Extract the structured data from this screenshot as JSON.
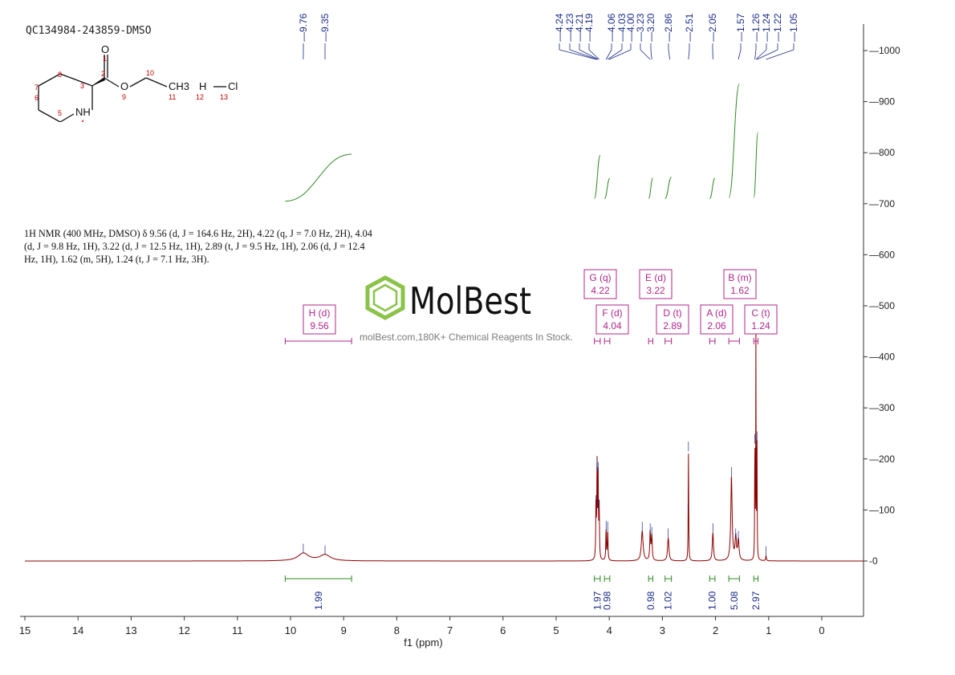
{
  "sample_id": "QC134984-243859-DMSO",
  "nmr_description": "1H NMR (400 MHz, DMSO) δ 9.56 (d, J = 164.6 Hz, 2H), 4.22 (q, J = 7.0 Hz, 2H), 4.04 (d, J = 9.8 Hz, 1H), 3.22 (d, J = 12.5 Hz, 1H), 2.89 (t, J = 9.5 Hz, 1H), 2.06 (d, J = 12.4 Hz, 1H), 1.62 (m, 5H), 1.24 (t, J = 7.1 Hz, 3H).",
  "watermark": {
    "brand": "MolBest",
    "tagline": "molBest.com,180K+ Chemical Reagents In Stock."
  },
  "structure": {
    "atoms": [
      "O",
      "O",
      "NH",
      "CH3",
      "H",
      "Cl"
    ],
    "numbers": [
      "1",
      "2",
      "3",
      "4",
      "5",
      "6",
      "7",
      "8",
      "9",
      "10",
      "11",
      "12",
      "13"
    ]
  },
  "colors": {
    "spectrum": "#8b0000",
    "integral": "#2e8b22",
    "peak_label": "#1a2a8a",
    "multiplet": "#b0268a",
    "axis": "#333333"
  },
  "chart_data": {
    "type": "line",
    "xlabel": "f1 (ppm)",
    "ylabel": "",
    "xlim": [
      15,
      -0.8
    ],
    "ylim": [
      -100,
      1050
    ],
    "x_ticks": [
      15,
      14,
      13,
      12,
      11,
      10,
      9,
      8,
      7,
      6,
      5,
      4,
      3,
      2,
      1,
      0
    ],
    "y_ticks": [
      0,
      100,
      200,
      300,
      400,
      500,
      600,
      700,
      800,
      900,
      1000
    ],
    "peak_labels": [
      "9.76",
      "9.35",
      "4.24",
      "4.23",
      "4.21",
      "4.19",
      "4.06",
      "4.03",
      "4.00",
      "3.23",
      "3.20",
      "2.86",
      "2.51",
      "2.05",
      "1.57",
      "1.26",
      "1.24",
      "1.22",
      "1.05"
    ],
    "peaks": [
      {
        "ppm": 9.76,
        "height": 15,
        "width": 0.12
      },
      {
        "ppm": 9.35,
        "height": 12,
        "width": 0.12
      },
      {
        "ppm": 4.25,
        "height": 110,
        "width": 0.006
      },
      {
        "ppm": 4.23,
        "height": 180,
        "width": 0.006
      },
      {
        "ppm": 4.21,
        "height": 175,
        "width": 0.006
      },
      {
        "ppm": 4.19,
        "height": 100,
        "width": 0.006
      },
      {
        "ppm": 4.06,
        "height": 60,
        "width": 0.007
      },
      {
        "ppm": 4.03,
        "height": 58,
        "width": 0.007
      },
      {
        "ppm": 3.38,
        "height": 58,
        "width": 0.02
      },
      {
        "ppm": 3.23,
        "height": 55,
        "width": 0.01
      },
      {
        "ppm": 3.2,
        "height": 48,
        "width": 0.01
      },
      {
        "ppm": 2.89,
        "height": 45,
        "width": 0.015
      },
      {
        "ppm": 2.51,
        "height": 215,
        "width": 0.005
      },
      {
        "ppm": 2.05,
        "height": 55,
        "width": 0.013
      },
      {
        "ppm": 1.7,
        "height": 165,
        "width": 0.015
      },
      {
        "ppm": 1.62,
        "height": 45,
        "width": 0.015
      },
      {
        "ppm": 1.57,
        "height": 40,
        "width": 0.015
      },
      {
        "ppm": 1.26,
        "height": 230,
        "width": 0.004
      },
      {
        "ppm": 1.24,
        "height": 460,
        "width": 0.004
      },
      {
        "ppm": 1.22,
        "height": 235,
        "width": 0.004
      },
      {
        "ppm": 1.05,
        "height": 10,
        "width": 0.008
      }
    ],
    "multiplets": [
      {
        "label": "H (d)",
        "value": "9.56",
        "ppm": 9.56,
        "range": [
          10.1,
          8.85
        ]
      },
      {
        "label": "G (q)",
        "value": "4.22",
        "ppm": 4.22,
        "range": [
          4.28,
          4.17
        ]
      },
      {
        "label": "F (d)",
        "value": "4.04",
        "ppm": 4.04,
        "range": [
          4.09,
          3.99
        ]
      },
      {
        "label": "E (d)",
        "value": "3.22",
        "ppm": 3.22,
        "range": [
          3.26,
          3.18
        ]
      },
      {
        "label": "D (t)",
        "value": "2.89",
        "ppm": 2.89,
        "range": [
          2.95,
          2.83
        ]
      },
      {
        "label": "A (d)",
        "value": "2.06",
        "ppm": 2.06,
        "range": [
          2.11,
          2.01
        ]
      },
      {
        "label": "B (m)",
        "value": "1.62",
        "ppm": 1.62,
        "range": [
          1.75,
          1.55
        ]
      },
      {
        "label": "C (t)",
        "value": "1.24",
        "ppm": 1.24,
        "range": [
          1.28,
          1.2
        ]
      }
    ],
    "integrals": [
      {
        "range": [
          10.1,
          8.85
        ],
        "value": "1.99",
        "curve_low": 705,
        "curve_high": 797
      },
      {
        "range": [
          4.28,
          4.17
        ],
        "value": "1.97",
        "curve_low": 710,
        "curve_high": 795
      },
      {
        "range": [
          4.09,
          3.99
        ],
        "value": "0.98",
        "curve_low": 710,
        "curve_high": 750
      },
      {
        "range": [
          3.26,
          3.18
        ],
        "value": "0.98",
        "curve_low": 710,
        "curve_high": 750
      },
      {
        "range": [
          2.95,
          2.83
        ],
        "value": "1.02",
        "curve_low": 710,
        "curve_high": 752
      },
      {
        "range": [
          2.11,
          2.01
        ],
        "value": "1.00",
        "curve_low": 710,
        "curve_high": 750
      },
      {
        "range": [
          1.75,
          1.55
        ],
        "value": "5.08",
        "curve_low": 712,
        "curve_high": 935
      },
      {
        "range": [
          1.28,
          1.2
        ],
        "value": "2.97",
        "curve_low": 712,
        "curve_high": 840
      }
    ]
  }
}
